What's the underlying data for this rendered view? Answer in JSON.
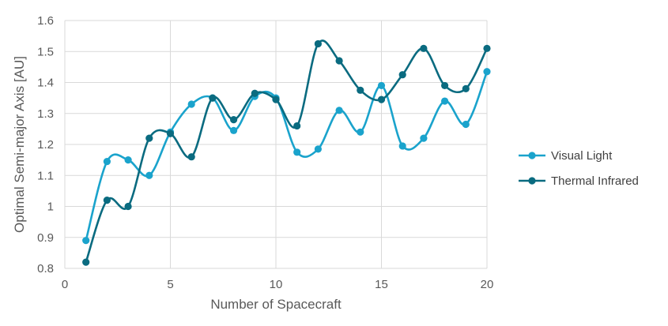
{
  "chart_data": {
    "type": "line",
    "title": "",
    "xlabel": "Number of Spacecraft",
    "ylabel": "Optimal Semi-major Axis [AU]",
    "xlim": [
      0,
      20
    ],
    "ylim": [
      0.8,
      1.6
    ],
    "x_ticks": [
      0,
      5,
      10,
      15,
      20
    ],
    "y_ticks": [
      0.8,
      0.9,
      1,
      1.1,
      1.2,
      1.3,
      1.4,
      1.5,
      1.6
    ],
    "x_tick_labels": [
      "0",
      "5",
      "10",
      "15",
      "20"
    ],
    "y_tick_labels": [
      "0.8",
      "0.9",
      "1",
      "1.1",
      "1.2",
      "1.3",
      "1.4",
      "1.5",
      "1.6"
    ],
    "grid": true,
    "smooth": true,
    "legend_position": "right",
    "x": [
      1,
      2,
      3,
      4,
      5,
      6,
      7,
      8,
      9,
      10,
      11,
      12,
      13,
      14,
      15,
      16,
      17,
      18,
      19,
      20
    ],
    "series": [
      {
        "name": "Visual Light",
        "color": "#1aa3cc",
        "values": [
          0.89,
          1.145,
          1.15,
          1.1,
          1.24,
          1.33,
          1.35,
          1.245,
          1.355,
          1.35,
          1.175,
          1.185,
          1.31,
          1.24,
          1.39,
          1.195,
          1.22,
          1.34,
          1.265,
          1.435
        ]
      },
      {
        "name": "Thermal Infrared",
        "color": "#0a6b80",
        "values": [
          0.82,
          1.02,
          1.0,
          1.22,
          1.235,
          1.16,
          1.35,
          1.28,
          1.365,
          1.345,
          1.26,
          1.525,
          1.47,
          1.375,
          1.345,
          1.425,
          1.51,
          1.39,
          1.38,
          1.51
        ]
      }
    ]
  }
}
